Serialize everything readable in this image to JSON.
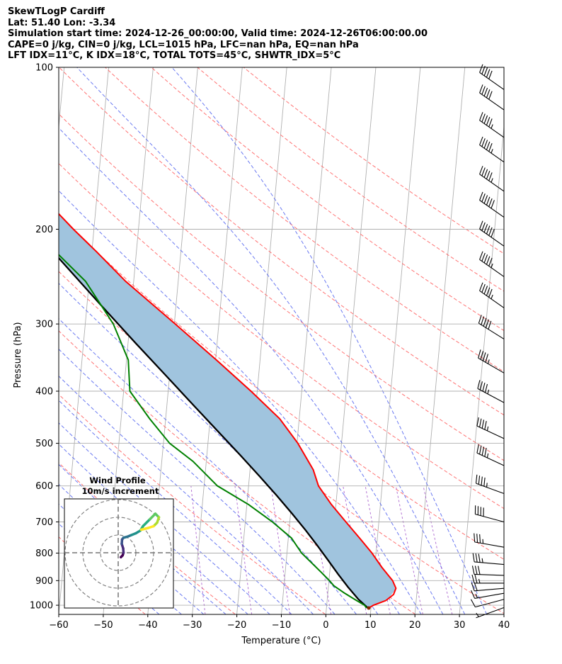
{
  "header": {
    "line1": "SkewTLogP Cardiff",
    "line2": "Lat: 51.40   Lon: -3.34",
    "line3": "Simulation start time: 2024-12-26_00:00:00, Valid time: 2024-12-26T06:00:00.00",
    "line4": "CAPE=0 j/kg, CIN=0 j/kg, LCL=1015 hPa, LFC=nan hPa, EQ=nan hPa",
    "line5": "LFT IDX=11°C, K IDX=18°C, TOTAL TOTS=45°C, SHWTR_IDX=5°C"
  },
  "colors": {
    "temperature": "#ff0000",
    "dewpoint": "#008000",
    "parcel": "#000000",
    "cin_cape_fill": "#a0c4de",
    "isotherm": "#b0b0b0",
    "dry_adiabat": "#ff6464",
    "moist_adiabat": "#5a6af0",
    "mixing_ratio": "#a050c8",
    "barb": "#000000"
  },
  "chart_data": {
    "type": "line",
    "title": "",
    "xlabel": "Temperature (°C)",
    "ylabel": "Pressure (hPa)",
    "xlim": [
      -60,
      40
    ],
    "ylim": [
      1040,
      100
    ],
    "yscale": "log",
    "skew": true,
    "x_ticks": [
      "−60",
      "−50",
      "−40",
      "−30",
      "−20",
      "−10",
      "0",
      "10",
      "20",
      "30",
      "40"
    ],
    "y_ticks": [
      "100",
      "200",
      "300",
      "400",
      "500",
      "600",
      "700",
      "800",
      "900",
      "1000"
    ],
    "series": [
      {
        "id": "temperature",
        "pressure": [
          1012,
          1000,
          980,
          955,
          930,
          900,
          850,
          800,
          750,
          700,
          650,
          600,
          560,
          500,
          450,
          400,
          350,
          300,
          250,
          220,
          200,
          180,
          160,
          140,
          120,
          100
        ],
        "values": [
          9.5,
          10.5,
          13.2,
          14.8,
          15.2,
          14.3,
          11.6,
          9.1,
          6.0,
          2.6,
          -1.0,
          -4.3,
          -5.8,
          -9.8,
          -14.4,
          -21.4,
          -29.8,
          -39.8,
          -51.8,
          -59.0,
          -64.6,
          -70.4,
          -76.8,
          -84.6,
          -93.8,
          -105.3
        ]
      },
      {
        "id": "dewpoint",
        "pressure": [
          1012,
          1000,
          980,
          950,
          920,
          900,
          870,
          800,
          750,
          700,
          650,
          600,
          540,
          500,
          450,
          400,
          350,
          300,
          250,
          200,
          180,
          160,
          140,
          120,
          100
        ],
        "values": [
          9.0,
          8.5,
          6.6,
          3.8,
          1.2,
          0.1,
          -1.8,
          -6.7,
          -9.3,
          -13.9,
          -19.6,
          -27.0,
          -33.0,
          -38.6,
          -43.6,
          -48.6,
          -49.6,
          -53.7,
          -60.8,
          -73.7,
          -78.4,
          -83.7,
          -90.1,
          -98.3,
          -109.1
        ]
      },
      {
        "id": "parcel",
        "pressure": [
          1015,
          975,
          925,
          875,
          825,
          775,
          725,
          675,
          625,
          575,
          525,
          475,
          425,
          375,
          325,
          275,
          225,
          175,
          125,
          100
        ],
        "values": [
          9.5,
          7.0,
          4.4,
          1.9,
          -0.6,
          -3.3,
          -6.3,
          -9.7,
          -13.5,
          -17.8,
          -22.6,
          -28.0,
          -34.0,
          -40.7,
          -48.4,
          -57.2,
          -67.6,
          -80.3,
          -97.0,
          -107.9
        ]
      }
    ],
    "wind_barbs": {
      "pressure": [
        1010,
        975,
        950,
        930,
        910,
        880,
        840,
        780,
        700,
        620,
        550,
        490,
        420,
        370,
        320,
        280,
        245,
        215,
        190,
        170,
        150,
        135,
        120,
        110
      ],
      "speed_kt": [
        5,
        10,
        15,
        20,
        25,
        30,
        35,
        35,
        40,
        45,
        45,
        45,
        45,
        45,
        50,
        55,
        55,
        60,
        60,
        55,
        55,
        55,
        50,
        50
      ],
      "direction_deg": [
        250,
        255,
        260,
        265,
        270,
        272,
        275,
        280,
        285,
        290,
        295,
        295,
        298,
        300,
        302,
        305,
        305,
        305,
        305,
        305,
        305,
        305,
        305,
        305
      ]
    },
    "hodograph": {
      "title": "Wind Profile",
      "subtitle": "10m/s increment",
      "u": [
        1.5,
        2.5,
        3.0,
        2.8,
        2.0,
        2.2,
        3.0,
        5.0,
        7.5,
        10.0,
        12.5,
        14.0,
        18.0,
        21.0,
        23.0,
        22.0,
        20.0,
        17.0,
        13.0
      ],
      "v": [
        -2.5,
        -1.5,
        0.0,
        2.5,
        5.0,
        7.5,
        8.5,
        9.0,
        10.0,
        11.0,
        12.5,
        15.0,
        19.0,
        22.0,
        20.0,
        17.0,
        15.0,
        14.0,
        13.0
      ]
    }
  }
}
